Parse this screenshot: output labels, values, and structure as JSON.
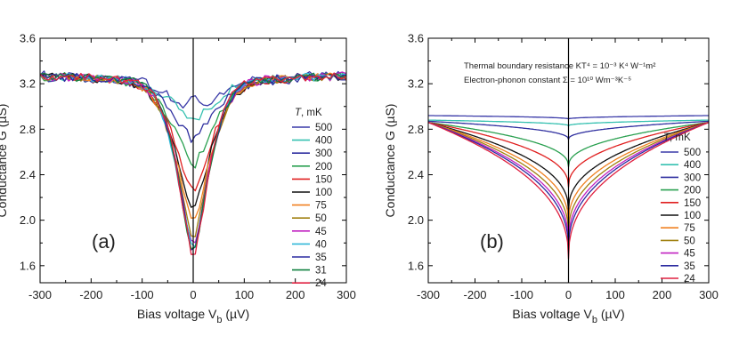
{
  "chart_data": [
    {
      "type": "line",
      "panel_label": "(a)",
      "xlabel_main": "Bias voltage V",
      "xlabel_sub": "b",
      "xlabel_unit": " (µV)",
      "ylabel": "Conductance G (µS)",
      "xlim": [
        -300,
        300
      ],
      "ylim": [
        1.45,
        3.6
      ],
      "xticks": [
        -300,
        -200,
        -100,
        0,
        100,
        200,
        300
      ],
      "yticks": [
        1.6,
        2.0,
        2.4,
        2.8,
        3.2,
        3.6
      ],
      "ytick_labels": [
        "1.6",
        "2.0",
        "2.4",
        "2.8",
        "3.2",
        "3.6"
      ],
      "legend_title_italic": "T",
      "legend_title_rest": ", mK",
      "legend_position": "right",
      "series": [
        {
          "name": "500",
          "color": "#3a3aa8",
          "min": 2.9,
          "width": 55,
          "noise": 0.05,
          "bump": 0.23
        },
        {
          "name": "400",
          "color": "#35c0b0",
          "min": 2.88,
          "width": 60,
          "noise": 0.04
        },
        {
          "name": "300",
          "color": "#3030a0",
          "min": 2.71,
          "width": 60,
          "noise": 0.04
        },
        {
          "name": "200",
          "color": "#2aa050",
          "min": 2.48,
          "width": 55,
          "noise": 0.04
        },
        {
          "name": "150",
          "color": "#e02020",
          "min": 2.25,
          "width": 52,
          "noise": 0.035
        },
        {
          "name": "100",
          "color": "#111111",
          "min": 2.1,
          "width": 50,
          "noise": 0.035
        },
        {
          "name": "75",
          "color": "#f08020",
          "min": 1.97,
          "width": 48,
          "noise": 0.035
        },
        {
          "name": "50",
          "color": "#a08010",
          "min": 1.85,
          "width": 46,
          "noise": 0.035
        },
        {
          "name": "45",
          "color": "#c020c0",
          "min": 1.78,
          "width": 45,
          "noise": 0.04
        },
        {
          "name": "40",
          "color": "#30b8d8",
          "min": 1.72,
          "width": 44,
          "noise": 0.035
        },
        {
          "name": "35",
          "color": "#2a2aa0",
          "min": 1.7,
          "width": 43,
          "noise": 0.035
        },
        {
          "name": "31",
          "color": "#108040",
          "min": 1.68,
          "width": 42,
          "noise": 0.035
        },
        {
          "name": "24",
          "color": "#e02040",
          "min": 1.67,
          "width": 42,
          "noise": 0.035
        }
      ]
    },
    {
      "type": "line",
      "panel_label": "(b)",
      "xlabel_main": "Bias voltage V",
      "xlabel_sub": "b",
      "xlabel_unit": " (µV)",
      "ylabel": "Conductance G (µS)",
      "xlim": [
        -300,
        300
      ],
      "ylim": [
        1.45,
        3.6
      ],
      "xticks": [
        -300,
        -200,
        -100,
        0,
        100,
        200,
        300
      ],
      "yticks": [
        1.6,
        2.0,
        2.4,
        2.8,
        3.2,
        3.6
      ],
      "ytick_labels": [
        "1.6",
        "2.0",
        "2.4",
        "2.8",
        "3.2",
        "3.6"
      ],
      "annotation_1": "Thermal boundary resistance KT⁴ = 10⁻³ K⁴ W⁻¹m²",
      "annotation_2": "Electron-phonon constant Σ = 10¹⁰ Wm⁻³K⁻⁵",
      "legend_title_italic": "T",
      "legend_title_rest": ", mK",
      "legend_position": "right",
      "series": [
        {
          "name": "500",
          "color": "#3a3aa8",
          "min": 2.89,
          "edge": 2.92
        },
        {
          "name": "400",
          "color": "#35c0b0",
          "min": 2.83,
          "edge": 2.88
        },
        {
          "name": "300",
          "color": "#3030a0",
          "min": 2.71,
          "edge": 2.87
        },
        {
          "name": "200",
          "color": "#2aa050",
          "min": 2.47,
          "edge": 2.86
        },
        {
          "name": "150",
          "color": "#e02020",
          "min": 2.29,
          "edge": 2.86
        },
        {
          "name": "100",
          "color": "#111111",
          "min": 2.08,
          "edge": 2.86
        },
        {
          "name": "75",
          "color": "#f08020",
          "min": 1.97,
          "edge": 2.86
        },
        {
          "name": "50",
          "color": "#a08010",
          "min": 1.88,
          "edge": 2.86
        },
        {
          "name": "45",
          "color": "#c020c0",
          "min": 1.8,
          "edge": 2.86
        },
        {
          "name": "35",
          "color": "#2a2aa0",
          "min": 1.74,
          "edge": 2.86
        },
        {
          "name": "24",
          "color": "#e02040",
          "min": 1.66,
          "edge": 2.86
        }
      ]
    }
  ]
}
